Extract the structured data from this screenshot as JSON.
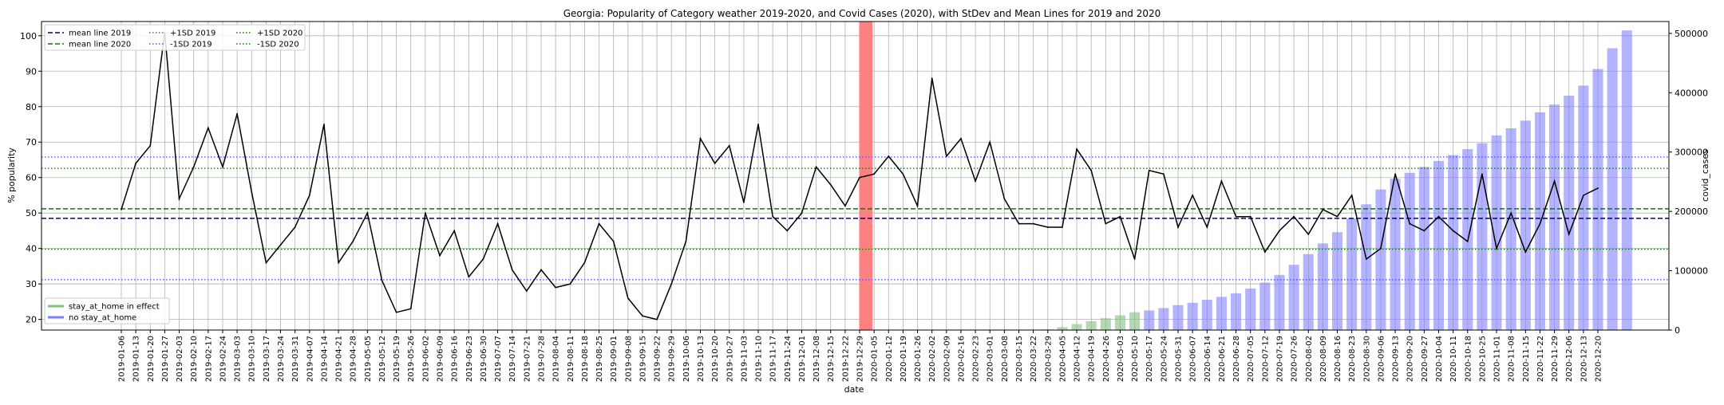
{
  "chart_data": {
    "type": "line",
    "title": "Georgia: Popularity of Category weather 2019-2020, and Covid Cases (2020), with StDev and Mean Lines for 2019 and 2020",
    "xlabel": "date",
    "ylabel": "% popularity",
    "y2label": "covid_cases",
    "ylim": [
      17,
      104
    ],
    "y2lim": [
      0,
      520000
    ],
    "yticks": [
      20,
      30,
      40,
      50,
      60,
      70,
      80,
      90,
      100
    ],
    "y2ticks": [
      0,
      100000,
      200000,
      300000,
      400000,
      500000
    ],
    "grid": true,
    "covid_start_marker": "2020-01-01",
    "dates": [
      "2019-01-06",
      "2019-01-13",
      "2019-01-20",
      "2019-01-27",
      "2019-02-03",
      "2019-02-10",
      "2019-02-17",
      "2019-02-24",
      "2019-03-03",
      "2019-03-10",
      "2019-03-17",
      "2019-03-24",
      "2019-03-31",
      "2019-04-07",
      "2019-04-14",
      "2019-04-21",
      "2019-04-28",
      "2019-05-05",
      "2019-05-12",
      "2019-05-19",
      "2019-05-26",
      "2019-06-02",
      "2019-06-09",
      "2019-06-16",
      "2019-06-23",
      "2019-06-30",
      "2019-07-07",
      "2019-07-14",
      "2019-07-21",
      "2019-07-28",
      "2019-08-04",
      "2019-08-11",
      "2019-08-18",
      "2019-08-25",
      "2019-09-01",
      "2019-09-08",
      "2019-09-15",
      "2019-09-22",
      "2019-09-29",
      "2019-10-06",
      "2019-10-13",
      "2019-10-20",
      "2019-10-27",
      "2019-11-03",
      "2019-11-10",
      "2019-11-17",
      "2019-11-24",
      "2019-12-01",
      "2019-12-08",
      "2019-12-15",
      "2019-12-22",
      "2019-12-29",
      "2020-01-05",
      "2020-01-12",
      "2020-01-19",
      "2020-01-26",
      "2020-02-02",
      "2020-02-09",
      "2020-02-16",
      "2020-02-23",
      "2020-03-01",
      "2020-03-08",
      "2020-03-15",
      "2020-03-22",
      "2020-03-29",
      "2020-04-05",
      "2020-04-12",
      "2020-04-19",
      "2020-04-26",
      "2020-05-03",
      "2020-05-10",
      "2020-05-17",
      "2020-05-24",
      "2020-05-31",
      "2020-06-07",
      "2020-06-14",
      "2020-06-21",
      "2020-06-28",
      "2020-07-05",
      "2020-07-12",
      "2020-07-19",
      "2020-07-26",
      "2020-08-02",
      "2020-08-09",
      "2020-08-16",
      "2020-08-23",
      "2020-08-30",
      "2020-09-06",
      "2020-09-13",
      "2020-09-20",
      "2020-09-27",
      "2020-10-04",
      "2020-10-11",
      "2020-10-18",
      "2020-10-25",
      "2020-11-01",
      "2020-11-08",
      "2020-11-15",
      "2020-11-22",
      "2020-11-29",
      "2020-12-06",
      "2020-12-13",
      "2020-12-20"
    ],
    "xtick_labels": [
      "2019-01-06",
      "2019-01-13",
      "2019-01-20",
      "2019-01-27",
      "2019-02-03",
      "2019-02-10",
      "2019-02-17",
      "2019-02-24",
      "2019-03-03",
      "2019-03-10",
      "2019-03-17",
      "2019-03-24",
      "2019-03-31",
      "2019-04-07",
      "2019-04-14",
      "2019-04-21",
      "2019-04-28",
      "2019-05-05",
      "2019-05-12",
      "2019-05-19",
      "2019-05-26",
      "2019-06-02",
      "2019-06-09",
      "2019-06-16",
      "2019-06-23",
      "2019-06-30",
      "2019-07-07",
      "2019-07-14",
      "2019-07-21",
      "2019-07-28",
      "2019-08-04",
      "2019-08-11",
      "2019-08-18",
      "2019-08-25",
      "2019-09-01",
      "2019-09-08",
      "2019-09-15",
      "2019-09-22",
      "2019-09-29",
      "2019-10-06",
      "2019-10-13",
      "2019-10-20",
      "2019-10-27",
      "2019-11-03",
      "2019-11-10",
      "2019-11-17",
      "2019-11-24",
      "2019-12-01",
      "2019-12-08",
      "2019-12-15",
      "2019-12-22",
      "2019-12-29",
      "2020-01-05",
      "2020-01-12",
      "2020-01-19",
      "2020-01-26",
      "2020-02-02",
      "2020-02-09",
      "2020-02-16",
      "2020-02-23",
      "2020-03-01",
      "2020-03-08",
      "2020-03-15",
      "2020-03-22",
      "2020-03-29",
      "2020-04-05",
      "2020-04-12",
      "2020-04-19",
      "2020-04-26",
      "2020-05-03",
      "2020-05-10",
      "2020-05-17",
      "2020-05-24",
      "2020-05-31",
      "2020-06-07",
      "2020-06-14",
      "2020-06-21",
      "2020-06-28",
      "2020-07-05",
      "2020-07-12",
      "2020-07-19",
      "2020-07-26",
      "2020-08-02",
      "2020-08-09",
      "2020-08-16",
      "2020-08-23",
      "2020-08-30",
      "2020-09-06",
      "2020-09-13",
      "2020-09-20",
      "2020-09-27",
      "2020-10-04",
      "2020-10-11",
      "2020-10-18",
      "2020-10-25",
      "2020-11-01",
      "2020-11-08",
      "2020-11-15",
      "2020-11-22",
      "2020-11-29",
      "2020-12-06",
      "2020-12-13",
      "2020-12-20"
    ],
    "popularity": [
      51,
      64,
      69,
      101,
      54,
      63,
      74,
      63,
      78,
      56,
      36,
      41,
      46,
      55,
      75,
      36,
      42,
      50,
      31,
      22,
      23,
      50,
      38,
      45,
      32,
      37,
      47,
      34,
      28,
      34,
      29,
      30,
      36,
      47,
      42,
      26,
      21,
      20,
      30,
      42,
      71,
      64,
      69,
      53,
      75,
      49,
      45,
      50,
      63,
      58,
      52,
      60,
      61,
      66,
      61,
      52,
      88,
      66,
      71,
      59,
      70,
      54,
      47,
      47,
      46,
      46,
      68,
      62,
      47,
      49,
      37,
      62,
      61,
      46,
      55,
      46,
      59,
      49,
      49,
      39,
      45,
      49,
      44,
      51,
      49,
      55,
      37,
      40,
      61,
      47,
      45,
      49,
      45,
      42,
      61,
      40,
      50,
      39,
      47,
      59,
      44,
      55,
      57
    ],
    "covid_cases": [
      0,
      0,
      0,
      0,
      0,
      0,
      0,
      0,
      0,
      0,
      0,
      0,
      0,
      0,
      0,
      0,
      0,
      0,
      0,
      0,
      0,
      0,
      0,
      0,
      0,
      0,
      0,
      0,
      0,
      0,
      0,
      0,
      0,
      0,
      0,
      0,
      0,
      0,
      0,
      0,
      0,
      0,
      0,
      0,
      0,
      0,
      0,
      0,
      0,
      0,
      0,
      0,
      0,
      0,
      0,
      0,
      0,
      0,
      0,
      0,
      0,
      0,
      0,
      0,
      1000,
      5000,
      10000,
      15000,
      20000,
      25000,
      30000,
      33000,
      37000,
      42000,
      46000,
      51000,
      56000,
      62000,
      70000,
      80000,
      93000,
      110000,
      128000,
      146000,
      165000,
      188000,
      212000,
      237000,
      255000,
      265000,
      275000,
      285000,
      295000,
      305000,
      315000,
      328000,
      340000,
      353000,
      367000,
      380000,
      395000,
      412000,
      440000,
      475000,
      505000
    ],
    "stay_at_home_effect": [
      false,
      false,
      false,
      false,
      false,
      false,
      false,
      false,
      false,
      false,
      false,
      false,
      false,
      false,
      false,
      false,
      false,
      false,
      false,
      false,
      false,
      false,
      false,
      false,
      false,
      false,
      false,
      false,
      false,
      false,
      false,
      false,
      false,
      false,
      false,
      false,
      false,
      false,
      false,
      false,
      false,
      false,
      false,
      false,
      false,
      false,
      false,
      false,
      false,
      false,
      false,
      false,
      false,
      false,
      false,
      false,
      false,
      false,
      false,
      false,
      false,
      false,
      false,
      false,
      true,
      true,
      true,
      true,
      true,
      true,
      true,
      false,
      false,
      false,
      false,
      false,
      false,
      false,
      false,
      false,
      false,
      false,
      false,
      false,
      false,
      false,
      false,
      false,
      false,
      false,
      false,
      false,
      false,
      false,
      false,
      false,
      false,
      false,
      false,
      false,
      false,
      false,
      false
    ],
    "reference_lines": {
      "mean_2019": 48.5,
      "mean_2020": 51.2,
      "plus_1sd_2019": 65.8,
      "minus_1sd_2019": 31.2,
      "plus_1sd_2020": 62.6,
      "minus_1sd_2020": 39.8
    },
    "colors": {
      "popularity_line": "#000000",
      "no_stay_at_home": "#8080ff",
      "stay_at_home": "#80c080",
      "covid_marker": "#ff8080",
      "lines_2019": "#00008b",
      "lines_2020": "#008000",
      "minus_sd_2019": "#5050ff"
    },
    "legends": {
      "lines": {
        "placement": "top-left",
        "entries": [
          "mean line 2019",
          "mean line 2020",
          "+1SD 2019",
          "-1SD 2019",
          "+1SD 2020",
          "-1SD 2020"
        ]
      },
      "bars": {
        "placement": "bottom-left",
        "entries": [
          "stay_at_home in effect",
          "no stay_at_home"
        ]
      }
    }
  }
}
